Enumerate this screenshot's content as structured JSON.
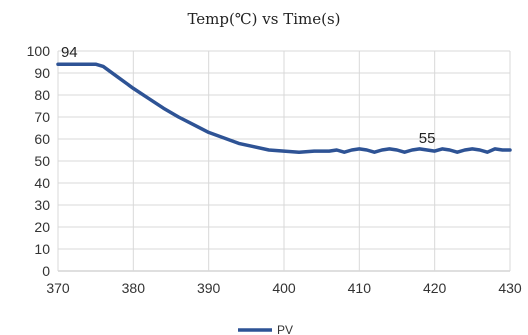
{
  "chart_data": {
    "type": "line",
    "title": "Temp(℃) vs Time(s)",
    "xlabel": "",
    "ylabel": "",
    "xlim": [
      370,
      430
    ],
    "ylim": [
      0,
      100
    ],
    "xticks": [
      "370",
      "380",
      "390",
      "400",
      "410",
      "420",
      "430"
    ],
    "yticks": [
      "0",
      "10",
      "20",
      "30",
      "40",
      "50",
      "60",
      "70",
      "80",
      "90",
      "100"
    ],
    "grid": true,
    "legend_position": "bottom",
    "series": [
      {
        "name": "PV",
        "color": "#2e5395",
        "x": [
          370,
          371,
          372,
          373,
          374,
          375,
          376,
          377,
          378,
          380,
          382,
          384,
          386,
          388,
          390,
          392,
          394,
          396,
          398,
          400,
          402,
          404,
          406,
          407,
          408,
          409,
          410,
          411,
          412,
          413,
          414,
          415,
          416,
          417,
          418,
          419,
          420,
          421,
          422,
          423,
          424,
          425,
          426,
          427,
          428,
          429,
          430
        ],
        "values": [
          94,
          94,
          94,
          94,
          94,
          94,
          93,
          90.5,
          88,
          83,
          78.5,
          74,
          70,
          66.5,
          63,
          60.5,
          58,
          56.5,
          55,
          54.5,
          54,
          54.5,
          54.5,
          55,
          54,
          55,
          55.5,
          55,
          54,
          55,
          55.5,
          55,
          54,
          55,
          55.5,
          55,
          54.5,
          55.5,
          55,
          54,
          55,
          55.5,
          55,
          54,
          55.5,
          55,
          55
        ]
      }
    ],
    "annotations": [
      {
        "text": "94",
        "x": 371.5,
        "y": 94
      },
      {
        "text": "55",
        "x": 419,
        "y": 55
      }
    ]
  }
}
